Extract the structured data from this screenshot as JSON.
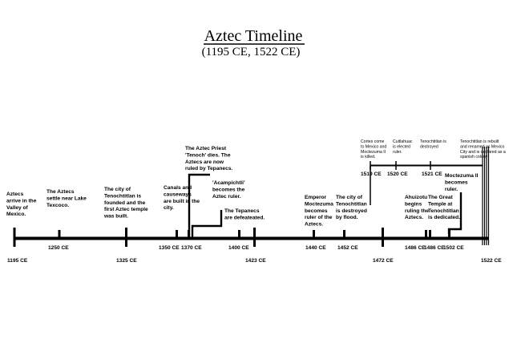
{
  "title": "Aztec Timeline",
  "subtitle": "(1195 CE, 1522 CE)",
  "main_axis": {
    "labels": [
      {
        "text": "1195 CE",
        "row": "low"
      },
      {
        "text": "1250 CE",
        "row": "high"
      },
      {
        "text": "1325 CE",
        "row": "low"
      },
      {
        "text": "1350 CE",
        "row": "high"
      },
      {
        "text": "1370 CE",
        "row": "high"
      },
      {
        "text": "1400 CE",
        "row": "high"
      },
      {
        "text": "1423 CE",
        "row": "low"
      },
      {
        "text": "1440 CE",
        "row": "high"
      },
      {
        "text": "1452 CE",
        "row": "high"
      },
      {
        "text": "1472 CE",
        "row": "low"
      },
      {
        "text": "1486 CE",
        "row": "high"
      },
      {
        "text": "1486 CE",
        "row": "high"
      },
      {
        "text": "1502 CE",
        "row": "high"
      },
      {
        "text": "1522 CE",
        "row": "low"
      }
    ]
  },
  "events": [
    {
      "id": "e1195",
      "lines": [
        "Aztecs",
        "arrive in the",
        "Valley of",
        "Mexico."
      ]
    },
    {
      "id": "e1250",
      "lines": [
        "The Aztecs",
        "settle near Lake",
        "Texcoco."
      ]
    },
    {
      "id": "e1325",
      "lines": [
        "The city of",
        "Tenochtitlan is",
        "founded and the",
        "first Aztec temple",
        "was built."
      ]
    },
    {
      "id": "e1350",
      "lines": [
        "Canals and",
        "causeways",
        "are built in the",
        "city."
      ]
    },
    {
      "id": "e1370a",
      "lines": [
        "The Aztec Priest",
        "'Tenoch' dies. The",
        "Aztecs are now",
        "ruled by Tepanecs."
      ]
    },
    {
      "id": "e1370b",
      "lines": [
        "'Acampichtli'",
        "becomes the",
        "Aztec ruler."
      ]
    },
    {
      "id": "e1400",
      "lines": [
        "The Tepanecs",
        "are defeateated."
      ]
    },
    {
      "id": "e1440",
      "lines": [
        "Emperor",
        "Moctezuma",
        "becomes",
        "ruler of the",
        "Aztecs."
      ]
    },
    {
      "id": "e1452",
      "lines": [
        "The city of",
        "Tenochtitlan",
        "is destroyed",
        "by flood."
      ]
    },
    {
      "id": "e1486a",
      "lines": [
        "Ahuizotu",
        "begins",
        "ruling the",
        "Aztecs."
      ]
    },
    {
      "id": "e1486b",
      "lines": [
        "The Great",
        "Temple at",
        "Tenochtitlan",
        "is dedicated."
      ]
    },
    {
      "id": "e1502",
      "lines": [
        "Moctezuma II",
        "becomes",
        "ruler."
      ]
    }
  ],
  "sub_axis": {
    "labels": [
      "1519 CE",
      "1520 CE",
      "1521 CE"
    ],
    "events": [
      {
        "id": "s1519",
        "lines": [
          "Cortes come",
          "to Mexico and",
          "Moctezuma II",
          "is killed."
        ]
      },
      {
        "id": "s1520",
        "lines": [
          "Cuitlahuac",
          "is elected",
          "ruler."
        ]
      },
      {
        "id": "s1521",
        "lines": [
          "Tenochtitlan is",
          "destroyed"
        ]
      },
      {
        "id": "s1522",
        "lines": [
          "Tenochtitlan is rebuilt",
          "and renamed as Mexico",
          "City and is declared as a",
          "spanish colony"
        ]
      }
    ]
  }
}
